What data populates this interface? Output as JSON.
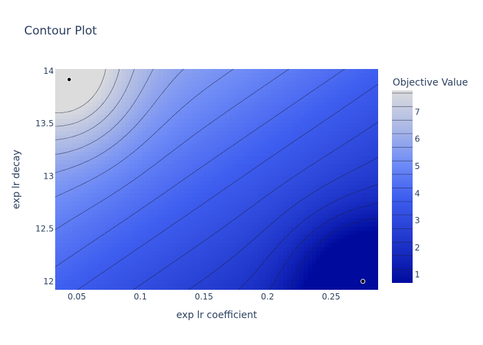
{
  "chart_data": {
    "type": "heatmap",
    "subtype": "contour",
    "title": "Contour Plot",
    "xlabel": "exp lr coefficient",
    "ylabel": "exp lr decay",
    "xlim": [
      0.033,
      0.287
    ],
    "ylim": [
      11.92,
      14.02
    ],
    "x_ticks": [
      {
        "value": 0.05,
        "label": "0.05"
      },
      {
        "value": 0.1,
        "label": "0.1"
      },
      {
        "value": 0.15,
        "label": "0.15"
      },
      {
        "value": 0.2,
        "label": "0.2"
      },
      {
        "value": 0.25,
        "label": "0.25"
      }
    ],
    "y_ticks": [
      {
        "value": 12,
        "label": "12"
      },
      {
        "value": 12.5,
        "label": "12.5"
      },
      {
        "value": 13,
        "label": "13"
      },
      {
        "value": 13.5,
        "label": "13.5"
      },
      {
        "value": 14,
        "label": "14"
      }
    ],
    "points": [
      {
        "x": 0.044,
        "y": 13.92,
        "objective": 7.8
      },
      {
        "x": 0.275,
        "y": 12.0,
        "objective": 0.7
      }
    ],
    "colorbar": {
      "title": "Objective Value",
      "min": 0.7,
      "max": 7.8,
      "ticks": [
        {
          "value": 1,
          "label": "1"
        },
        {
          "value": 2,
          "label": "2"
        },
        {
          "value": 3,
          "label": "3"
        },
        {
          "value": 4,
          "label": "4"
        },
        {
          "value": 5,
          "label": "5"
        },
        {
          "value": 6,
          "label": "6"
        },
        {
          "value": 7,
          "label": "7"
        }
      ],
      "contour_levels": [
        1.2,
        1.7,
        2.2,
        2.7,
        3.2,
        3.7,
        4.2,
        4.7,
        5.2,
        5.7,
        6.2,
        6.7,
        7.2,
        7.7
      ],
      "colorscale": [
        {
          "at": 0.0,
          "color": "#000b9e"
        },
        {
          "at": 0.18,
          "color": "#1a2fc4"
        },
        {
          "at": 0.45,
          "color": "#3f5ff0"
        },
        {
          "at": 0.62,
          "color": "#6f8cf6"
        },
        {
          "at": 0.8,
          "color": "#a9b7e6"
        },
        {
          "at": 1.0,
          "color": "#dcdcdc"
        }
      ]
    },
    "colors": {
      "contour_line": "#1b1f3a",
      "marker_fill": "#000000",
      "marker_edge": "#ffffff"
    }
  }
}
